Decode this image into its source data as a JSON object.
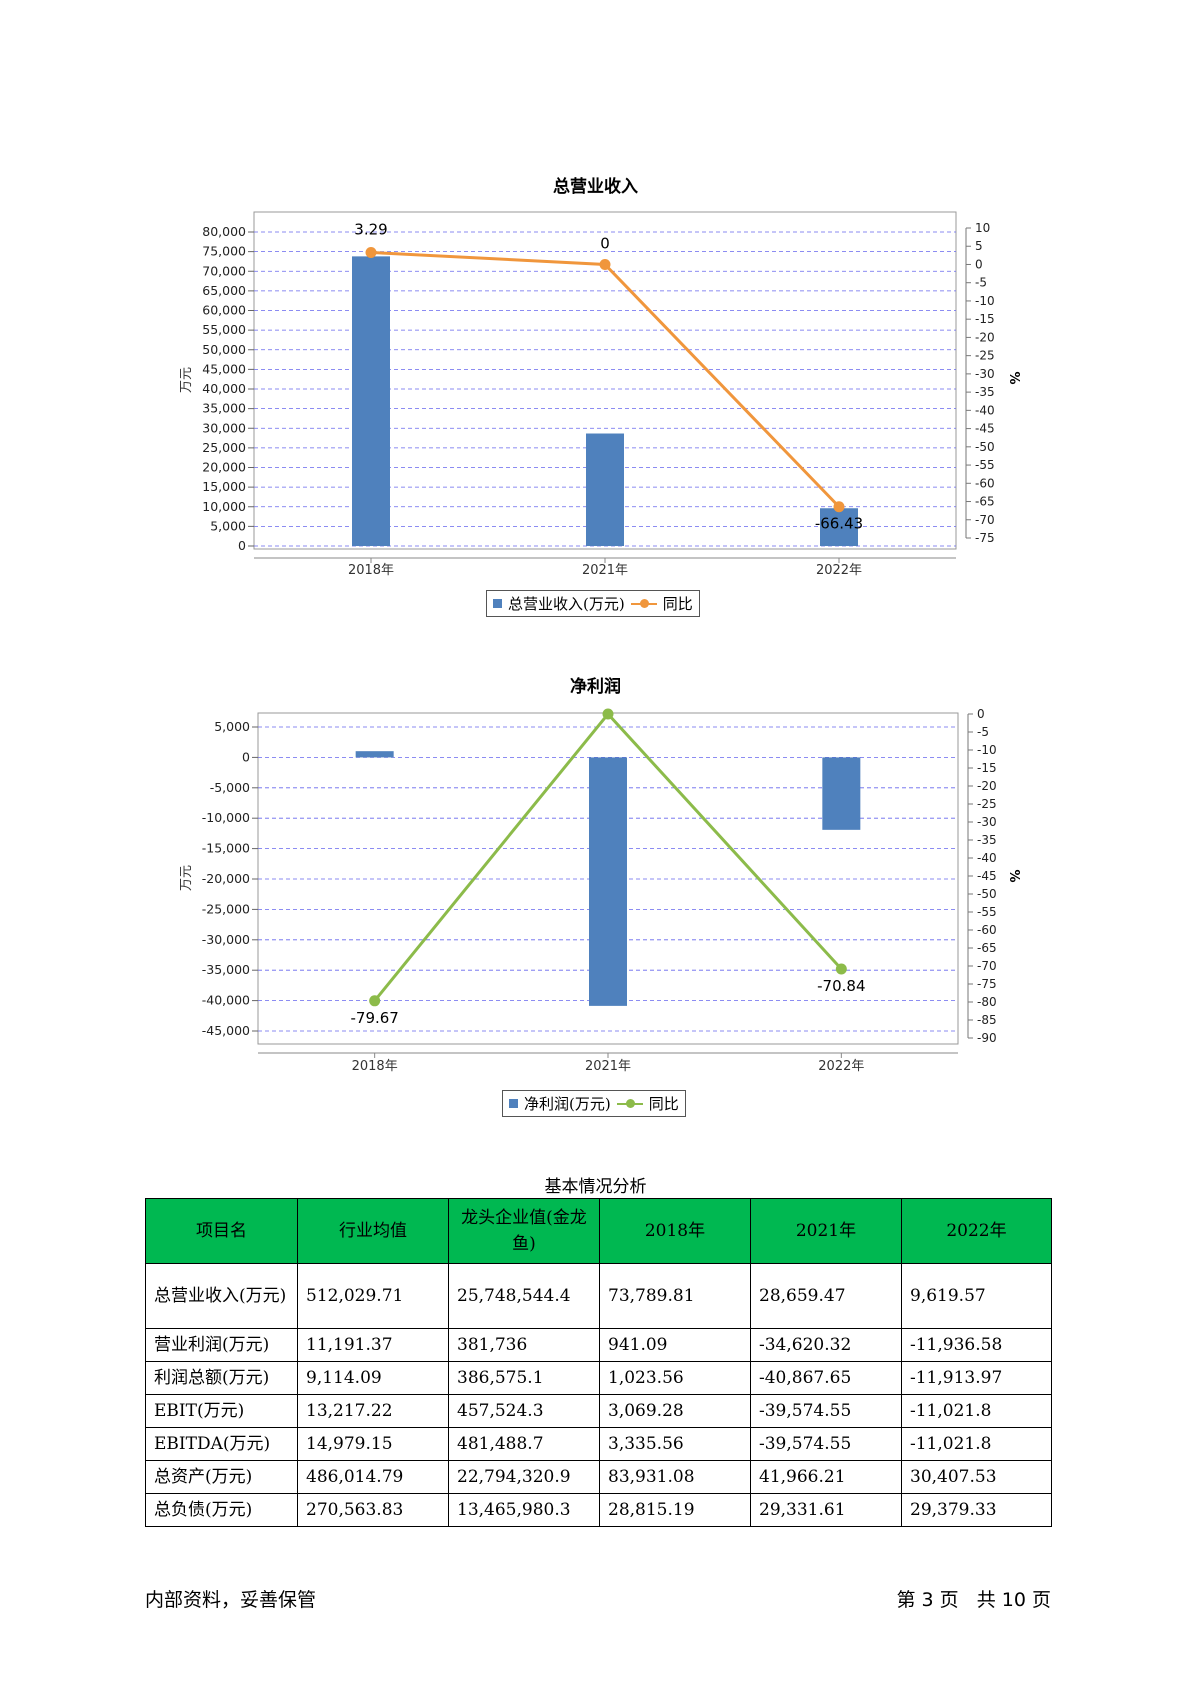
{
  "chart_data": [
    {
      "type": "bar",
      "title": "总营业收入",
      "categories": [
        "2018年",
        "2021年",
        "2022年"
      ],
      "series": [
        {
          "name": "总营业收入(万元)",
          "type": "bar",
          "axis": "left",
          "values": [
            73789.81,
            28659.47,
            9619.57
          ]
        },
        {
          "name": "同比",
          "type": "line",
          "axis": "right",
          "values": [
            3.29,
            0,
            -66.43
          ]
        }
      ],
      "ylabel": "万元",
      "y2label": "%",
      "ylim": [
        0,
        80000
      ],
      "yticks": [
        "80,000",
        "75,000",
        "70,000",
        "65,000",
        "60,000",
        "55,000",
        "50,000",
        "45,000",
        "40,000",
        "35,000",
        "30,000",
        "25,000",
        "20,000",
        "15,000",
        "10,000",
        "5,000",
        "0"
      ],
      "y2lim": [
        -75,
        10
      ],
      "y2ticks": [
        "10",
        "5",
        "0",
        "-5",
        "-10",
        "-15",
        "-20",
        "-25",
        "-30",
        "-35",
        "-40",
        "-45",
        "-50",
        "-55",
        "-60",
        "-65",
        "-70",
        "-75"
      ],
      "data_labels": [
        "3.29",
        "0",
        "-66.43"
      ],
      "grid": true,
      "legend_position": "bottom-center",
      "colors": {
        "bar": "#4f81bd",
        "line": "#f0963c"
      }
    },
    {
      "type": "bar",
      "title": "净利润",
      "categories": [
        "2018年",
        "2021年",
        "2022年"
      ],
      "series": [
        {
          "name": "净利润(万元)",
          "type": "bar",
          "axis": "left",
          "values": [
            1023.56,
            -40867.65,
            -11913.97
          ]
        },
        {
          "name": "同比",
          "type": "line",
          "axis": "right",
          "values": [
            -79.67,
            0,
            -70.84
          ]
        }
      ],
      "ylabel": "万元",
      "y2label": "%",
      "ylim": [
        -45000,
        5000
      ],
      "yticks": [
        "5,000",
        "0",
        "-5,000",
        "-10,000",
        "-15,000",
        "-20,000",
        "-25,000",
        "-30,000",
        "-35,000",
        "-40,000",
        "-45,000"
      ],
      "y2lim": [
        -90,
        0
      ],
      "y2ticks": [
        "0",
        "-5",
        "-10",
        "-15",
        "-20",
        "-25",
        "-30",
        "-35",
        "-40",
        "-45",
        "-50",
        "-55",
        "-60",
        "-65",
        "-70",
        "-75",
        "-80",
        "-85",
        "-90"
      ],
      "data_labels": [
        "-79.67",
        "",
        "-70.84"
      ],
      "grid": true,
      "legend_position": "bottom-center",
      "colors": {
        "bar": "#4f81bd",
        "line": "#8cbb4a"
      }
    }
  ],
  "table": {
    "title": "基本情况分析",
    "headers": [
      "项目名",
      "行业均值",
      "龙头企业值(金龙鱼)",
      "2018年",
      "2021年",
      "2022年"
    ],
    "rows": [
      [
        "总营业收入(万元)",
        "512,029.71",
        "25,748,544.4",
        "73,789.81",
        "28,659.47",
        "9,619.57"
      ],
      [
        "营业利润(万元)",
        "11,191.37",
        "381,736",
        "941.09",
        "-34,620.32",
        "-11,936.58"
      ],
      [
        "利润总额(万元)",
        "9,114.09",
        "386,575.1",
        "1,023.56",
        "-40,867.65",
        "-11,913.97"
      ],
      [
        "EBIT(万元)",
        "13,217.22",
        "457,524.3",
        "3,069.28",
        "-39,574.55",
        "-11,021.8"
      ],
      [
        "EBITDA(万元)",
        "14,979.15",
        "481,488.7",
        "3,335.56",
        "-39,574.55",
        "-11,021.8"
      ],
      [
        "总资产(万元)",
        "486,014.79",
        "22,794,320.9",
        "83,931.08",
        "41,966.21",
        "30,407.53"
      ],
      [
        "总负债(万元)",
        "270,563.83",
        "13,465,980.3",
        "28,815.19",
        "29,331.61",
        "29,379.33"
      ]
    ],
    "header_color": "#00b851"
  },
  "footer": {
    "left": "内部资料，妥善保管",
    "right": "第 3 页   共 10 页"
  }
}
